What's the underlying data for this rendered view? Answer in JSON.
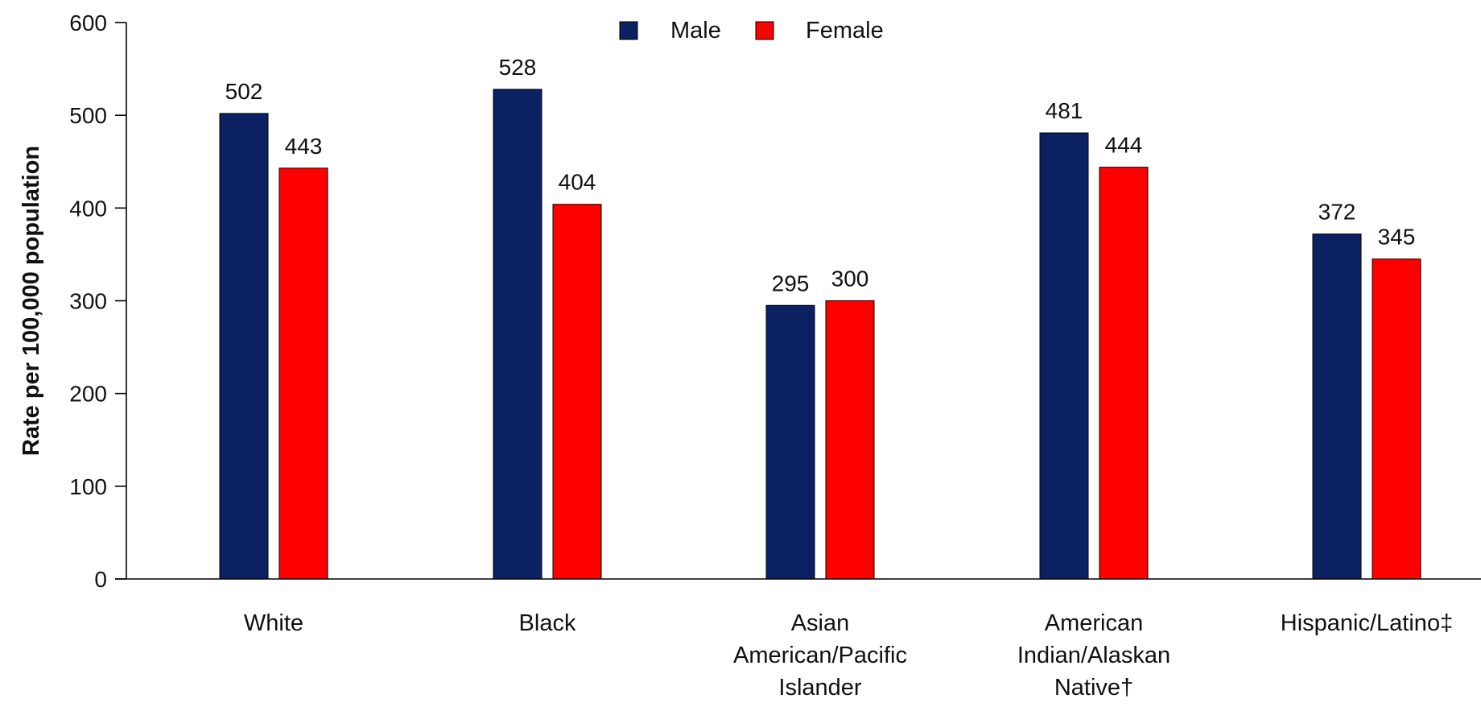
{
  "chart_data": {
    "type": "bar",
    "ylabel": "Rate per 100,000 population",
    "xlabel": "",
    "ylim": [
      0,
      600
    ],
    "yticks": [
      0,
      100,
      200,
      300,
      400,
      500,
      600
    ],
    "grid": false,
    "legend_position": "top-center",
    "categories": [
      [
        "White"
      ],
      [
        "Black"
      ],
      [
        "Asian",
        "American/Pacific",
        "Islander"
      ],
      [
        "American",
        "Indian/Alaskan",
        "Native†"
      ],
      [
        "Hispanic/Latino‡"
      ]
    ],
    "series": [
      {
        "name": "Male",
        "color": "#0b2161",
        "values": [
          502,
          528,
          295,
          481,
          372
        ]
      },
      {
        "name": "Female",
        "color": "#ff0000",
        "values": [
          443,
          404,
          300,
          444,
          345
        ]
      }
    ]
  }
}
